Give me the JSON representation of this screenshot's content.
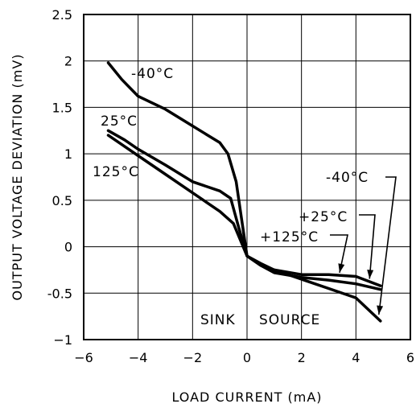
{
  "chart_data": {
    "type": "line",
    "xlabel": "LOAD CURRENT (mA)",
    "ylabel": "OUTPUT VOLTAGE DEVIATION (mV)",
    "xlim": [
      -6,
      6
    ],
    "ylim": [
      -1,
      2.5
    ],
    "xticks": [
      -6,
      -4,
      -2,
      0,
      2,
      4,
      6
    ],
    "yticks": [
      -1,
      -0.5,
      0,
      0.5,
      1,
      1.5,
      2,
      2.5
    ],
    "x_tick_labels": [
      "−6",
      "−4",
      "−2",
      "0",
      "2",
      "4",
      "6"
    ],
    "y_tick_labels": [
      "−1",
      "-0.5",
      "0",
      "0.5",
      "1",
      "1.5",
      "2",
      "2.5"
    ],
    "grid": true,
    "series": [
      {
        "name": "-40°C",
        "x": [
          -5.1,
          -4.6,
          -4.0,
          -3.0,
          -2.0,
          -1.0,
          -0.7,
          -0.4,
          -0.2,
          0.0,
          0.5,
          1.0,
          2.0,
          3.0,
          4.0,
          4.9
        ],
        "y": [
          1.98,
          1.8,
          1.62,
          1.48,
          1.3,
          1.12,
          1.0,
          0.7,
          0.3,
          -0.1,
          -0.18,
          -0.25,
          -0.35,
          -0.45,
          -0.55,
          -0.8
        ]
      },
      {
        "name": "25°C",
        "x": [
          -5.1,
          -4.5,
          -4.0,
          -3.0,
          -2.0,
          -1.0,
          -0.6,
          -0.3,
          0.0,
          0.5,
          1.0,
          2.0,
          3.0,
          4.0,
          4.9
        ],
        "y": [
          1.25,
          1.15,
          1.05,
          0.88,
          0.7,
          0.6,
          0.52,
          0.2,
          -0.1,
          -0.2,
          -0.25,
          -0.3,
          -0.3,
          -0.32,
          -0.42
        ]
      },
      {
        "name": "125°C",
        "x": [
          -5.1,
          -4.5,
          -4.0,
          -3.0,
          -2.0,
          -1.0,
          -0.5,
          0.0,
          0.5,
          1.0,
          2.0,
          3.0,
          4.0,
          4.9
        ],
        "y": [
          1.2,
          1.08,
          0.98,
          0.78,
          0.58,
          0.38,
          0.25,
          -0.1,
          -0.2,
          -0.28,
          -0.33,
          -0.36,
          -0.4,
          -0.46
        ]
      }
    ],
    "annotations": {
      "neg40_left": "-40°C",
      "t25_left": "25°C",
      "t125_left": "125°C",
      "neg40_right": "-40°C",
      "t25_right": "+25°C",
      "t125_right": "+125°C",
      "sink": "SINK",
      "source": "SOURCE"
    }
  }
}
